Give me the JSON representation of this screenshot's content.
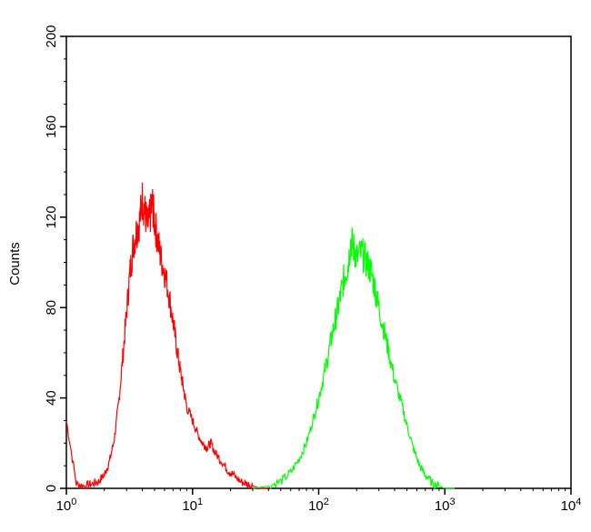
{
  "chart_data": {
    "type": "line",
    "title": "",
    "xlabel": "",
    "ylabel": "Counts",
    "x_scale": "log",
    "xlim": [
      1,
      10000
    ],
    "ylim": [
      0,
      200
    ],
    "x_ticks": [
      {
        "base": "10",
        "exp": "0",
        "value": 1
      },
      {
        "base": "10",
        "exp": "1",
        "value": 10
      },
      {
        "base": "10",
        "exp": "2",
        "value": 100
      },
      {
        "base": "10",
        "exp": "3",
        "value": 1000
      },
      {
        "base": "10",
        "exp": "4",
        "value": 10000
      }
    ],
    "y_ticks": [
      "0",
      "40",
      "80",
      "120",
      "160",
      "200"
    ],
    "y_tick_values": [
      0,
      40,
      80,
      120,
      160,
      200
    ],
    "grid": false,
    "legend": "none",
    "series": [
      {
        "color": "#ff0000",
        "x": [
          1.0,
          1.2,
          1.4,
          1.6,
          1.8,
          2.0,
          2.2,
          2.4,
          2.6,
          2.8,
          3.0,
          3.2,
          3.4,
          3.6,
          3.8,
          4.0,
          4.2,
          4.4,
          4.6,
          4.8,
          5.0,
          5.3,
          5.6,
          6.0,
          6.5,
          7.0,
          7.5,
          8.0,
          8.5,
          9.0,
          10,
          11,
          12,
          13,
          14,
          15,
          17,
          19,
          21,
          24,
          27,
          30,
          35,
          40
        ],
        "y": [
          30,
          2,
          1,
          2,
          3,
          6,
          12,
          22,
          38,
          58,
          78,
          96,
          108,
          114,
          118,
          128,
          122,
          116,
          120,
          126,
          118,
          110,
          102,
          96,
          86,
          74,
          62,
          52,
          44,
          36,
          30,
          24,
          20,
          18,
          20,
          16,
          12,
          8,
          6,
          3,
          2,
          1,
          0,
          0
        ]
      },
      {
        "color": "#00ff00",
        "x": [
          30,
          40,
          50,
          60,
          70,
          80,
          90,
          100,
          110,
          120,
          130,
          140,
          150,
          160,
          170,
          180,
          190,
          200,
          220,
          240,
          260,
          280,
          300,
          330,
          360,
          400,
          450,
          500,
          560,
          630,
          700,
          800,
          900,
          1000,
          1200
        ],
        "y": [
          0,
          1,
          3,
          7,
          13,
          20,
          30,
          40,
          50,
          60,
          70,
          78,
          86,
          94,
          98,
          110,
          106,
          102,
          104,
          100,
          96,
          88,
          80,
          70,
          60,
          48,
          38,
          28,
          18,
          10,
          6,
          2,
          1,
          0,
          0
        ]
      }
    ]
  }
}
